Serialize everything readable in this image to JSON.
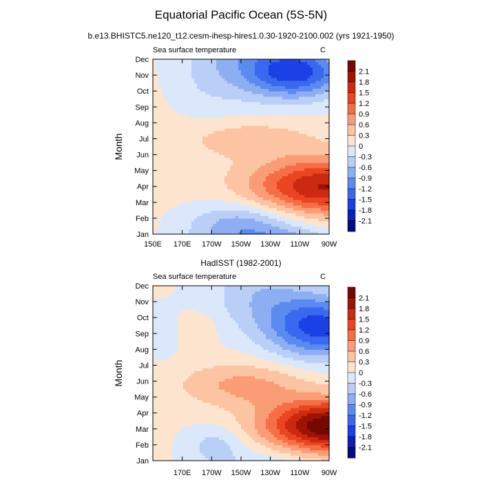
{
  "title": "Equatorial Pacific Ocean (5S-5N)",
  "subtitle": "b.e13.BHISTC5.ne120_t12.cesm-ihesp-hires1.0.30-1920-2100.002 (yrs 1921-1950)",
  "chart_data": [
    {
      "type": "heatmap",
      "title": "",
      "left_label": "Sea surface temperature",
      "right_label": "C",
      "ylabel": "Month",
      "xlabel": "",
      "x_ticks": [
        "150E",
        "170E",
        "170W",
        "150W",
        "130W",
        "110W",
        "90W"
      ],
      "y_ticks": [
        "Jan",
        "Feb",
        "Mar",
        "Apr",
        "May",
        "Jun",
        "Jul",
        "Aug",
        "Sep",
        "Oct",
        "Nov",
        "Dec"
      ],
      "xlim_deg_east": [
        150,
        270
      ],
      "peak_warm": {
        "lon": "95W",
        "month": "Apr",
        "value": 1.7
      },
      "peak_cold": {
        "lon": "105W",
        "month": "Nov",
        "value": -1.5
      },
      "colorbar": {
        "levels": [
          2.1,
          1.8,
          1.5,
          1.2,
          0.9,
          0.6,
          0.3,
          0,
          -0.3,
          -0.6,
          -0.9,
          -1.2,
          -1.5,
          -1.8,
          -2.1
        ],
        "labels": [
          "2.1",
          "1.8",
          "1.5",
          "1.2",
          "0.9",
          "0.6",
          "0.3",
          "0",
          "-0.3",
          "-0.6",
          "-0.9",
          "-1.2",
          "-1.5",
          "-1.8",
          "-2.1"
        ]
      }
    },
    {
      "type": "heatmap",
      "title": "HadISST (1982-2001)",
      "left_label": "Sea surface temperature",
      "right_label": "C",
      "ylabel": "Month",
      "xlabel": "",
      "x_ticks": [
        "",
        "170E",
        "170W",
        "150W",
        "130W",
        "110W",
        "90W"
      ],
      "y_ticks": [
        "Jan",
        "Feb",
        "Mar",
        "Apr",
        "May",
        "Jun",
        "Jul",
        "Aug",
        "Sep",
        "Oct",
        "Nov",
        "Dec"
      ],
      "xlim_deg_east": [
        150,
        270
      ],
      "peak_warm": {
        "lon": "90W",
        "month": "Mar",
        "value": 2.2
      },
      "peak_cold": {
        "lon": "90W",
        "month": "Sep",
        "value": -1.6
      },
      "colorbar": {
        "levels": [
          2.1,
          1.8,
          1.5,
          1.2,
          0.9,
          0.6,
          0.3,
          0,
          -0.3,
          -0.6,
          -0.9,
          -1.2,
          -1.5,
          -1.8,
          -2.1
        ],
        "labels": [
          "2.1",
          "1.8",
          "1.5",
          "1.2",
          "0.9",
          "0.6",
          "0.3",
          "0",
          "-0.3",
          "-0.6",
          "-0.9",
          "-1.2",
          "-1.5",
          "-1.8",
          "-2.1"
        ]
      }
    }
  ],
  "colors": {
    "palette": [
      "#0a0a80",
      "#0b1fb8",
      "#1a40e6",
      "#3a68ee",
      "#5b8af0",
      "#8eaef3",
      "#b9cff7",
      "#dbe8fb",
      "#fde4cf",
      "#fcc4a2",
      "#fa9c75",
      "#f56e46",
      "#ea4520",
      "#cc2a10",
      "#9e1304",
      "#750800"
    ]
  }
}
